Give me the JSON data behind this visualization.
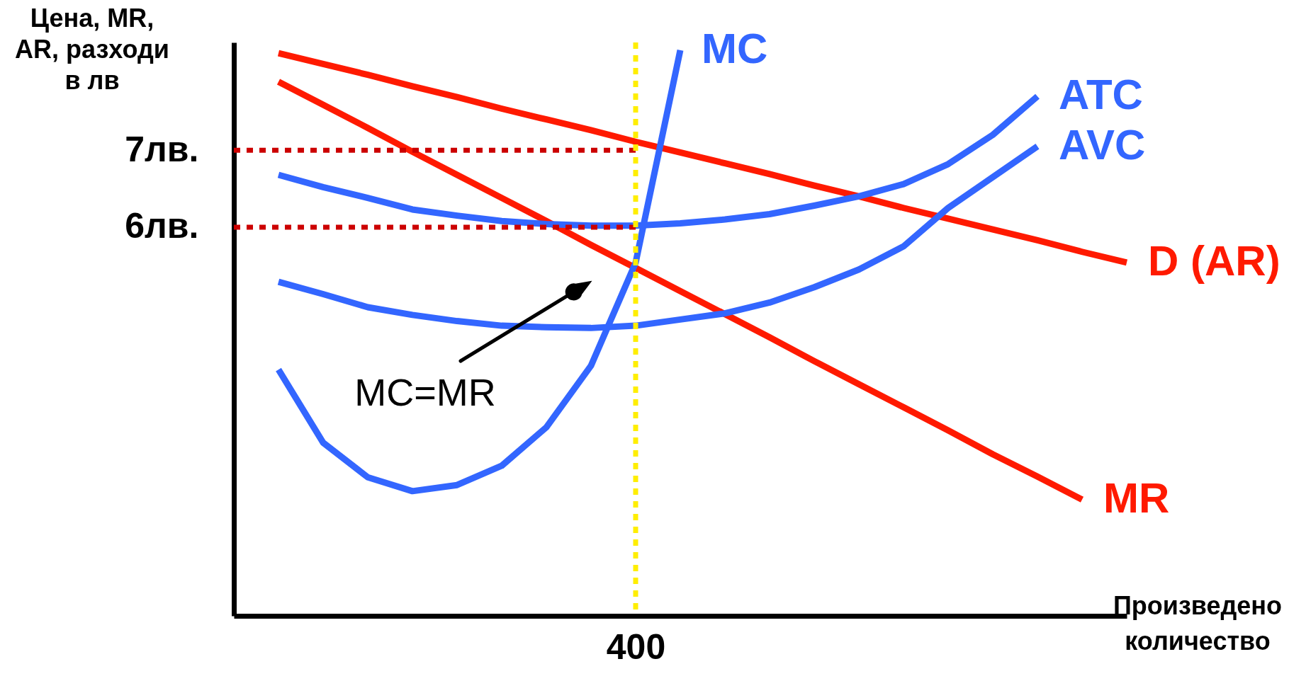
{
  "chart_data": {
    "type": "line",
    "xlabel": "Произведено количество",
    "ylabel": "Цена, MR, AR, разходи в лв",
    "categories": [
      null,
      null,
      null,
      null,
      null,
      null,
      null,
      null,
      null,
      "400",
      null,
      null,
      null,
      null,
      null,
      null,
      null,
      null,
      null,
      null,
      null
    ],
    "ylim": [
      0.95,
      8.4
    ],
    "yticks": [
      {
        "value": 6,
        "label": "6лв."
      },
      {
        "value": 7,
        "label": "7лв."
      }
    ],
    "grid": false,
    "legend": false,
    "marker": "none",
    "series": [
      {
        "name": "D (AR)",
        "color": "#ff1a00",
        "line_style": "solid",
        "values": [
          null,
          8.26,
          8.12,
          7.98,
          7.83,
          7.69,
          7.54,
          7.4,
          7.26,
          7.11,
          6.97,
          6.83,
          6.69,
          6.54,
          6.4,
          6.25,
          6.11,
          5.97,
          5.83,
          5.68,
          5.54
        ]
      },
      {
        "name": "MR",
        "color": "#ff1a00",
        "line_style": "solid",
        "values": [
          null,
          7.89,
          7.59,
          7.29,
          6.98,
          6.68,
          6.38,
          6.08,
          5.77,
          5.47,
          5.17,
          4.87,
          4.57,
          4.26,
          3.96,
          3.66,
          3.36,
          3.05,
          2.76,
          2.46,
          null
        ]
      },
      {
        "name": "MC",
        "color": "#3366ff",
        "line_style": "solid",
        "values": [
          null,
          4.15,
          3.2,
          2.75,
          2.57,
          2.65,
          2.9,
          3.4,
          4.2,
          5.54,
          8.3,
          null,
          null,
          null,
          null,
          null,
          null,
          null,
          null,
          null,
          null
        ]
      },
      {
        "name": "ATC",
        "color": "#3366ff",
        "line_style": "solid",
        "values": [
          null,
          6.68,
          6.52,
          6.38,
          6.23,
          6.15,
          6.08,
          6.04,
          6.02,
          6.02,
          6.05,
          6.1,
          6.17,
          6.28,
          6.4,
          6.56,
          6.82,
          7.2,
          7.7,
          null,
          null
        ]
      },
      {
        "name": "AVC",
        "color": "#3366ff",
        "line_style": "solid",
        "values": [
          null,
          5.29,
          5.13,
          4.96,
          4.86,
          4.78,
          4.72,
          4.7,
          4.69,
          4.72,
          4.8,
          4.88,
          5.02,
          5.22,
          5.45,
          5.75,
          6.25,
          6.65,
          7.05,
          null,
          null
        ]
      },
      {
        "color": "#cc0000",
        "line_style": "dotted",
        "values": [
          7,
          7,
          7,
          7,
          7,
          7,
          7,
          7,
          7,
          7,
          null,
          null,
          null,
          null,
          null,
          null,
          null,
          null,
          null,
          null,
          null
        ]
      },
      {
        "color": "#cc0000",
        "line_style": "dotted",
        "values": [
          6,
          6,
          6,
          6,
          6,
          6,
          6,
          6,
          6,
          6,
          null,
          null,
          null,
          null,
          null,
          null,
          null,
          null,
          null,
          null,
          null
        ]
      }
    ],
    "ref_lines": [
      {
        "axis": "x",
        "value": "400",
        "color": "#ffee00",
        "line_style": "dotted"
      }
    ],
    "annotations": [
      "MC=MR"
    ]
  }
}
